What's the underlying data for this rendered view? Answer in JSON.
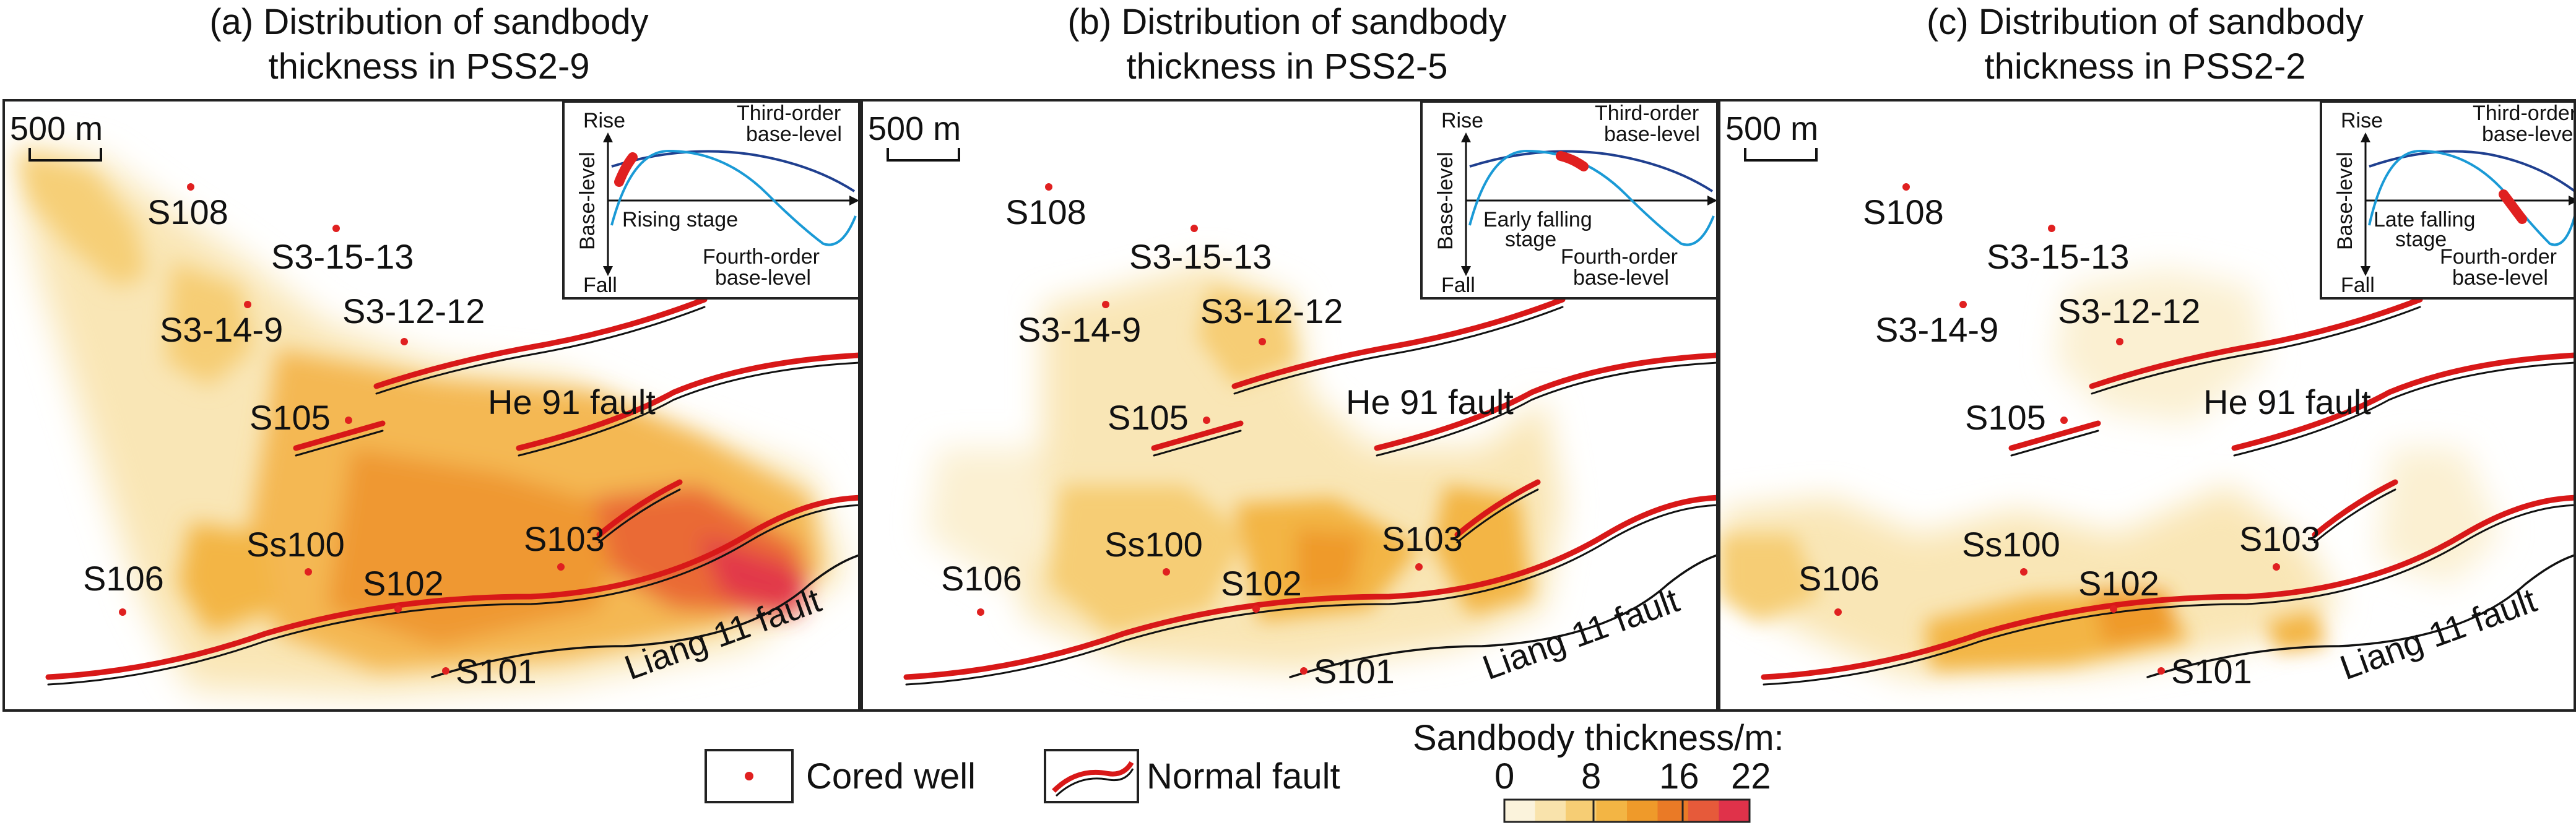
{
  "panels": [
    {
      "title_line1": "(a) Distribution of sandbody",
      "title_line2": "thickness in PSS2-9",
      "scale_label": "500 m",
      "wells": [
        "S108",
        "S3-15-13",
        "S3-14-9",
        "S3-12-12",
        "S105",
        "Ss100",
        "S103",
        "S106",
        "S102",
        "S101"
      ],
      "faults": [
        "He 91 fault",
        "Liang 11 fault"
      ],
      "inset": {
        "rise": "Rise",
        "fall": "Fall",
        "axis": "Base-level",
        "third_order": [
          "Third-order",
          "base-level"
        ],
        "fourth_order": [
          "Fourth-order",
          "base-level"
        ],
        "stage": [
          "Rising stage"
        ]
      }
    },
    {
      "title_line1": "(b) Distribution of sandbody",
      "title_line2": "thickness in PSS2-5",
      "scale_label": "500 m",
      "wells": [
        "S108",
        "S3-15-13",
        "S3-14-9",
        "S3-12-12",
        "S105",
        "Ss100",
        "S103",
        "S106",
        "S102",
        "S101"
      ],
      "faults": [
        "He 91 fault",
        "Liang 11 fault"
      ],
      "inset": {
        "rise": "Rise",
        "fall": "Fall",
        "axis": "Base-level",
        "third_order": [
          "Third-order",
          "base-level"
        ],
        "fourth_order": [
          "Fourth-order",
          "base-level"
        ],
        "stage": [
          "Early falling",
          "stage"
        ]
      }
    },
    {
      "title_line1": "(c) Distribution of sandbody",
      "title_line2": "thickness in PSS2-2",
      "scale_label": "500 m",
      "wells": [
        "S108",
        "S3-15-13",
        "S3-14-9",
        "S3-12-12",
        "S105",
        "Ss100",
        "S103",
        "S106",
        "S102",
        "S101"
      ],
      "faults": [
        "He 91 fault",
        "Liang 11 fault"
      ],
      "inset": {
        "rise": "Rise",
        "fall": "Fall",
        "axis": "Base-level",
        "third_order": [
          "Third-order",
          "base-level"
        ],
        "fourth_order": [
          "Fourth-order",
          "base-level"
        ],
        "stage": [
          "Late falling",
          "stage"
        ]
      }
    }
  ],
  "legend": {
    "cored_well": "Cored well",
    "normal_fault": "Normal fault",
    "thickness_title": "Sandbody thickness/m:",
    "ticks": [
      "0",
      "8",
      "16",
      "22"
    ],
    "ramp_colors": [
      "#fbf3dc",
      "#f9e3ac",
      "#f6cd74",
      "#f3b544",
      "#ef9a2a",
      "#ea7a26",
      "#e65a3a",
      "#e0324a"
    ]
  },
  "colors": {
    "well": "#e02020",
    "fault": "#d81818",
    "third_order_curve": "#1f3f8f",
    "fourth_order_curve": "#1a9ad6"
  }
}
